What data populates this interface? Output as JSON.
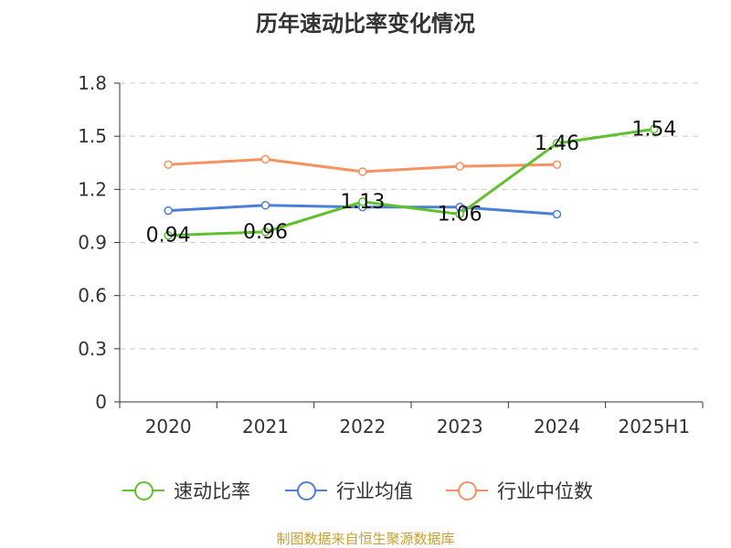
{
  "chart_data": {
    "type": "line",
    "title": "历年速动比率变化情况",
    "categories": [
      "2020",
      "2021",
      "2022",
      "2023",
      "2024",
      "2025H1"
    ],
    "y_ticks": [
      "0",
      "0.3",
      "0.6",
      "0.9",
      "1.2",
      "1.5",
      "1.8"
    ],
    "ylim": [
      0,
      1.8
    ],
    "grid": true,
    "legend_position": "bottom",
    "series": [
      {
        "name": "速动比率",
        "color": "#5ec12e",
        "values": [
          0.94,
          0.96,
          1.13,
          1.06,
          1.46,
          1.54
        ],
        "labels": [
          "0.94",
          "0.96",
          "1.13",
          "1.06",
          "1.46",
          "1.54"
        ]
      },
      {
        "name": "行业均值",
        "color": "#4b7fd6",
        "values": [
          1.08,
          1.11,
          1.1,
          1.1,
          1.06,
          null
        ]
      },
      {
        "name": "行业中位数",
        "color": "#f79260",
        "values": [
          1.34,
          1.37,
          1.3,
          1.33,
          1.34,
          null
        ]
      }
    ]
  },
  "source": "制图数据来自恒生聚源数据库"
}
